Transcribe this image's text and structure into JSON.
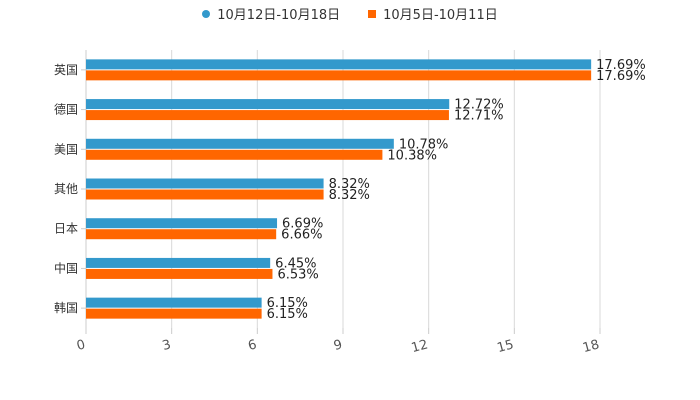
{
  "chart_data": {
    "type": "bar",
    "orientation": "horizontal",
    "categories": [
      "英国",
      "德国",
      "美国",
      "其他",
      "日本",
      "中国",
      "韩国"
    ],
    "series": [
      {
        "name": "10月12日-10月18日",
        "color": "#3399cc",
        "marker": "circle",
        "values": [
          17.69,
          12.72,
          10.78,
          8.32,
          6.69,
          6.45,
          6.15
        ]
      },
      {
        "name": "10月5日-10月11日",
        "color": "#ff6600",
        "marker": "square",
        "values": [
          17.69,
          12.71,
          10.38,
          8.32,
          6.66,
          6.53,
          6.15
        ]
      }
    ],
    "value_suffix": "%",
    "xlim": [
      0,
      18
    ],
    "xticks": [
      0,
      3,
      6,
      9,
      12,
      15,
      18
    ],
    "grid": true,
    "legend_position": "top-center",
    "title": "",
    "xlabel": "",
    "ylabel": ""
  },
  "legend": {
    "series0_label": "10月12日-10月18日",
    "series1_label": "10月5日-10月11日",
    "series0_color": "#3399cc",
    "series1_color": "#ff6600"
  }
}
